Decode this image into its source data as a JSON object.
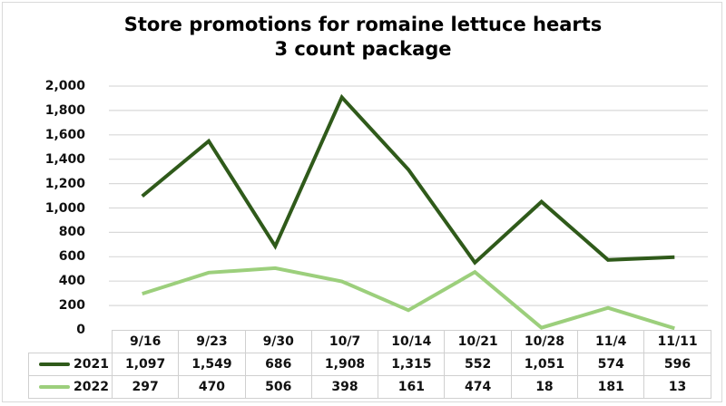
{
  "chart_data": {
    "type": "line",
    "title": "Store promotions for romaine lettuce hearts",
    "subtitle": "3 count package",
    "categories": [
      "9/16",
      "9/23",
      "9/30",
      "10/7",
      "10/14",
      "10/21",
      "10/28",
      "11/4",
      "11/11"
    ],
    "series": [
      {
        "name": "2021",
        "color": "#2f5a1a",
        "values": [
          1097,
          1549,
          686,
          1908,
          1315,
          552,
          1051,
          574,
          596
        ],
        "labels": [
          "1,097",
          "1,549",
          "686",
          "1,908",
          "1,315",
          "552",
          "1,051",
          "574",
          "596"
        ]
      },
      {
        "name": "2022",
        "color": "#9ccf7c",
        "values": [
          297,
          470,
          506,
          398,
          161,
          474,
          18,
          181,
          13
        ],
        "labels": [
          "297",
          "470",
          "506",
          "398",
          "161",
          "474",
          "18",
          "181",
          "13"
        ]
      }
    ],
    "yticks": [
      "0",
      "200",
      "400",
      "600",
      "800",
      "1,000",
      "1,200",
      "1,400",
      "1,600",
      "1,800",
      "2,000"
    ],
    "ylim": [
      0,
      2000
    ],
    "xlabel": "",
    "ylabel": "",
    "grid": true,
    "legend_position": "data-table"
  }
}
